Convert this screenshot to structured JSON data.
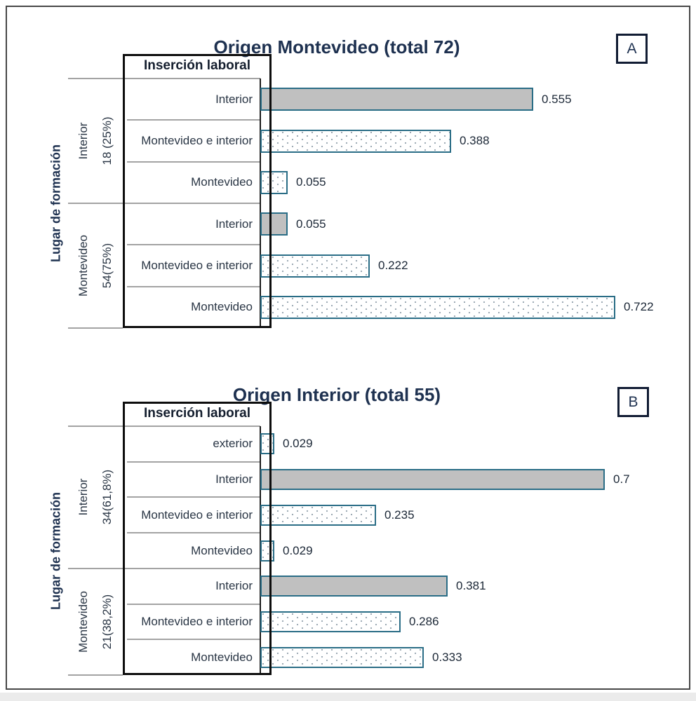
{
  "figure": {
    "frame_visible": true,
    "panel_badges": [
      "A",
      "B"
    ]
  },
  "colors": {
    "title": "#1e3150",
    "bar_border": "#2a6d86",
    "bar_fill_solid": "#c0c0c0",
    "bar_fill_dotted": "#ffffff",
    "dot_pattern": "#98a6b0",
    "grid_line": "#a3a3a3",
    "box_border": "#0d0d0d",
    "frame_border": "#474747"
  },
  "chart_data": [
    {
      "type": "bar",
      "orientation": "horizontal",
      "panel_label": "A",
      "title": "Origen Montevideo (total 72)",
      "total": 72,
      "category_axis_title": "Lugar de formación",
      "series_box_header": "Inserción laboral",
      "value_axis_ticks_visible": false,
      "xlim": [
        0,
        0.8
      ],
      "groups": [
        {
          "name": "Interior",
          "count_label": "18 (25%)",
          "rows": [
            {
              "category": "Interior",
              "value": 0.555,
              "value_label": "0.555",
              "style": "solid-gray"
            },
            {
              "category": "Montevideo e interior",
              "value": 0.388,
              "value_label": "0.388",
              "style": "dotted-white"
            },
            {
              "category": "Montevideo",
              "value": 0.055,
              "value_label": "0.055",
              "style": "dotted-white"
            }
          ]
        },
        {
          "name": "Montevideo",
          "count_label": "54(75%)",
          "rows": [
            {
              "category": "Interior",
              "value": 0.055,
              "value_label": "0.055",
              "style": "solid-gray"
            },
            {
              "category": "Montevideo e interior",
              "value": 0.222,
              "value_label": "0.222",
              "style": "dotted-white"
            },
            {
              "category": "Montevideo",
              "value": 0.722,
              "value_label": "0.722",
              "style": "dotted-white"
            }
          ]
        }
      ]
    },
    {
      "type": "bar",
      "orientation": "horizontal",
      "panel_label": "B",
      "title": "Origen Interior (total 55)",
      "total": 55,
      "category_axis_title": "Lugar de formación",
      "series_box_header": "Inserción laboral",
      "value_axis_ticks_visible": false,
      "xlim": [
        0,
        0.8
      ],
      "groups": [
        {
          "name": "Interior",
          "count_label": "34(61,8%)",
          "rows": [
            {
              "category": "exterior",
              "value": 0.029,
              "value_label": "0.029",
              "style": "dotted-white"
            },
            {
              "category": "Interior",
              "value": 0.7,
              "value_label": "0.7",
              "style": "solid-gray"
            },
            {
              "category": "Montevideo e interior",
              "value": 0.235,
              "value_label": "0.235",
              "style": "dotted-white"
            },
            {
              "category": "Montevideo",
              "value": 0.029,
              "value_label": "0.029",
              "style": "dotted-white"
            }
          ]
        },
        {
          "name": "Montevideo",
          "count_label": "21(38,2%)",
          "rows": [
            {
              "category": "Interior",
              "value": 0.381,
              "value_label": "0.381",
              "style": "solid-gray"
            },
            {
              "category": "Montevideo e interior",
              "value": 0.286,
              "value_label": "0.286",
              "style": "dotted-white"
            },
            {
              "category": "Montevideo",
              "value": 0.333,
              "value_label": "0.333",
              "style": "dotted-white"
            }
          ]
        }
      ]
    }
  ]
}
